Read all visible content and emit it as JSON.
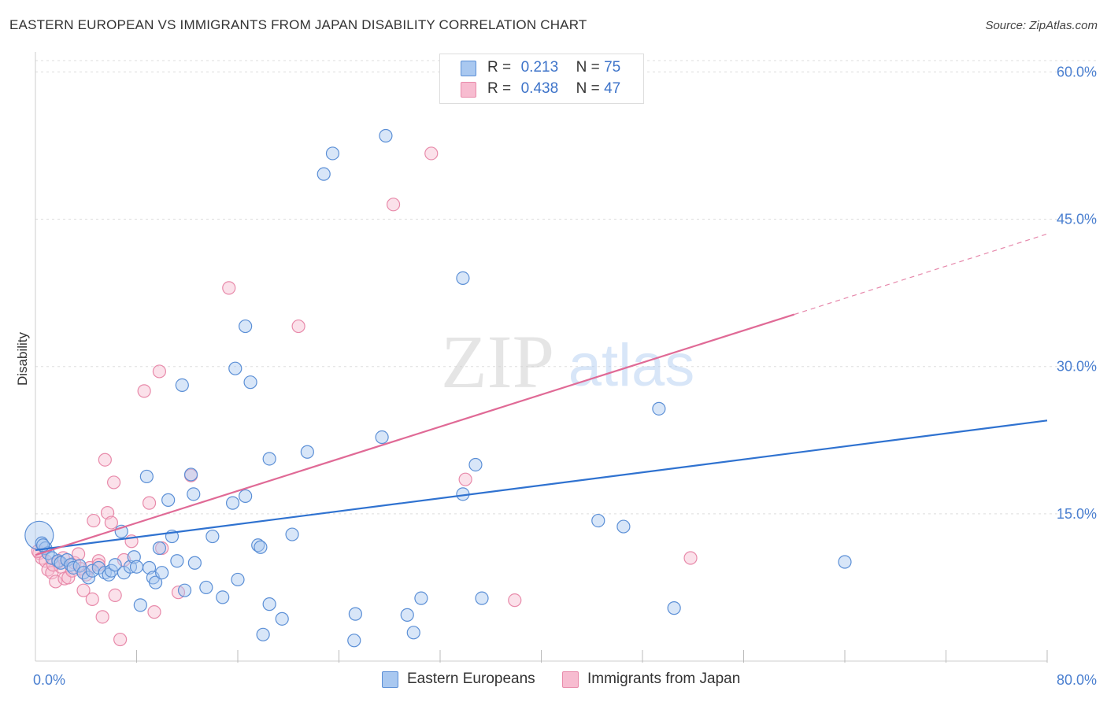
{
  "title": "EASTERN EUROPEAN VS IMMIGRANTS FROM JAPAN DISABILITY CORRELATION CHART",
  "source": "Source: ZipAtlas.com",
  "watermark": {
    "zip": "ZIP",
    "atlas": "atlas"
  },
  "legend": {
    "rows": [
      {
        "r_label": "R =",
        "r_value": "0.213",
        "n_label": "N =",
        "n_value": "75",
        "color": "#a9c8f0"
      },
      {
        "r_label": "R =",
        "r_value": "0.438",
        "n_label": "N =",
        "n_value": "47",
        "color": "#f7bcd0"
      }
    ]
  },
  "bottom_legend": [
    {
      "label": "Eastern Europeans",
      "color": "#a9c8f0"
    },
    {
      "label": "Immigrants from Japan",
      "color": "#f7bcd0"
    }
  ],
  "colors": {
    "blue_fill": "#a9c8f0",
    "blue_stroke": "#5b8fd6",
    "blue_line": "#2f72d0",
    "pink_fill": "#f7bcd0",
    "pink_stroke": "#e88aaa",
    "pink_line": "#e06a96",
    "grid": "#dddddd",
    "tick_text": "#4a7fd0"
  },
  "chart_data": {
    "type": "scatter",
    "title": "EASTERN EUROPEAN VS IMMIGRANTS FROM JAPAN DISABILITY CORRELATION CHART",
    "xlabel": "",
    "ylabel": "Disability",
    "xlim": [
      0,
      80
    ],
    "ylim": [
      0,
      60
    ],
    "x_tick_labels": [
      {
        "x": 0,
        "label": "0.0%"
      },
      {
        "x": 80,
        "label": "80.0%"
      }
    ],
    "y_tick_labels": [
      {
        "y": 15,
        "label": "15.0%"
      },
      {
        "y": 30,
        "label": "30.0%"
      },
      {
        "y": 45,
        "label": "45.0%"
      },
      {
        "y": 60,
        "label": "60.0%"
      }
    ],
    "x_minor_ticks": [
      8,
      16,
      24,
      32,
      40,
      48,
      56,
      64,
      72,
      80
    ],
    "series": [
      {
        "name": "Eastern Europeans",
        "color": "#a9c8f0",
        "points": [
          [
            0.3,
            12.8
          ],
          [
            0.5,
            12.0
          ],
          [
            0.8,
            11.5
          ],
          [
            1.0,
            11.0
          ],
          [
            1.3,
            10.5
          ],
          [
            1.8,
            10.2
          ],
          [
            2.0,
            10.0
          ],
          [
            2.5,
            10.3
          ],
          [
            2.8,
            9.8
          ],
          [
            3.0,
            9.5
          ],
          [
            3.5,
            9.7
          ],
          [
            3.8,
            9.0
          ],
          [
            4.2,
            8.5
          ],
          [
            4.5,
            9.2
          ],
          [
            5.0,
            9.5
          ],
          [
            5.5,
            9.0
          ],
          [
            5.8,
            8.8
          ],
          [
            6.0,
            9.2
          ],
          [
            6.3,
            9.8
          ],
          [
            6.8,
            13.2
          ],
          [
            7.0,
            9.0
          ],
          [
            7.5,
            9.6
          ],
          [
            7.8,
            10.6
          ],
          [
            8.0,
            9.6
          ],
          [
            8.3,
            5.7
          ],
          [
            8.8,
            18.8
          ],
          [
            9.0,
            9.5
          ],
          [
            9.3,
            8.5
          ],
          [
            9.5,
            8.0
          ],
          [
            9.8,
            11.5
          ],
          [
            10.0,
            9.0
          ],
          [
            10.5,
            16.4
          ],
          [
            10.8,
            12.7
          ],
          [
            11.2,
            10.2
          ],
          [
            11.6,
            28.1
          ],
          [
            11.8,
            7.2
          ],
          [
            12.3,
            19.0
          ],
          [
            12.5,
            17.0
          ],
          [
            12.6,
            10.0
          ],
          [
            13.5,
            7.5
          ],
          [
            14.0,
            12.7
          ],
          [
            14.8,
            6.5
          ],
          [
            15.6,
            16.1
          ],
          [
            15.8,
            29.8
          ],
          [
            16.0,
            8.3
          ],
          [
            16.6,
            34.1
          ],
          [
            16.6,
            16.8
          ],
          [
            17.0,
            28.4
          ],
          [
            17.6,
            11.8
          ],
          [
            17.8,
            11.6
          ],
          [
            18.0,
            2.7
          ],
          [
            18.5,
            20.6
          ],
          [
            18.5,
            5.8
          ],
          [
            19.5,
            4.3
          ],
          [
            20.3,
            12.9
          ],
          [
            21.5,
            21.3
          ],
          [
            22.8,
            49.6
          ],
          [
            23.5,
            51.7
          ],
          [
            25.3,
            4.8
          ],
          [
            25.2,
            2.1
          ],
          [
            27.4,
            22.8
          ],
          [
            27.7,
            53.5
          ],
          [
            29.4,
            4.7
          ],
          [
            29.9,
            2.9
          ],
          [
            30.5,
            6.4
          ],
          [
            33.8,
            39.0
          ],
          [
            33.8,
            17.0
          ],
          [
            34.8,
            20.0
          ],
          [
            35.3,
            6.4
          ],
          [
            44.5,
            14.3
          ],
          [
            46.5,
            13.7
          ],
          [
            49.3,
            25.7
          ],
          [
            50.5,
            5.4
          ],
          [
            64.0,
            10.1
          ],
          [
            0.6,
            11.8
          ]
        ],
        "trend": {
          "x": [
            0,
            80
          ],
          "y": [
            11.3,
            24.5
          ]
        }
      },
      {
        "name": "Immigrants from Japan",
        "color": "#f7bcd0",
        "points": [
          [
            0.3,
            11.0
          ],
          [
            0.5,
            10.5
          ],
          [
            0.8,
            10.2
          ],
          [
            1.0,
            9.3
          ],
          [
            1.3,
            9.0
          ],
          [
            1.6,
            8.1
          ],
          [
            1.8,
            10.1
          ],
          [
            2.0,
            9.6
          ],
          [
            2.2,
            10.5
          ],
          [
            2.3,
            8.4
          ],
          [
            2.6,
            8.5
          ],
          [
            2.9,
            9.2
          ],
          [
            3.1,
            10.0
          ],
          [
            3.4,
            10.9
          ],
          [
            3.6,
            9.4
          ],
          [
            3.8,
            7.2
          ],
          [
            4.0,
            8.8
          ],
          [
            4.3,
            9.5
          ],
          [
            4.5,
            6.3
          ],
          [
            4.6,
            14.3
          ],
          [
            5.0,
            10.2
          ],
          [
            5.0,
            9.8
          ],
          [
            5.3,
            4.5
          ],
          [
            5.5,
            20.5
          ],
          [
            5.7,
            15.1
          ],
          [
            6.0,
            14.1
          ],
          [
            6.2,
            18.2
          ],
          [
            6.3,
            6.7
          ],
          [
            6.7,
            2.2
          ],
          [
            7.0,
            10.3
          ],
          [
            7.6,
            12.2
          ],
          [
            8.6,
            27.5
          ],
          [
            9.0,
            16.1
          ],
          [
            9.4,
            5.0
          ],
          [
            9.8,
            29.5
          ],
          [
            10.0,
            11.5
          ],
          [
            11.3,
            7.0
          ],
          [
            12.3,
            18.9
          ],
          [
            15.3,
            38.0
          ],
          [
            20.8,
            34.1
          ],
          [
            28.3,
            46.5
          ],
          [
            31.3,
            51.7
          ],
          [
            34.0,
            18.5
          ],
          [
            37.9,
            6.2
          ],
          [
            51.8,
            10.5
          ],
          [
            0.2,
            11.2
          ],
          [
            1.4,
            9.8
          ]
        ],
        "trend": {
          "x": [
            0,
            60
          ],
          "y": [
            10.8,
            35.3
          ]
        },
        "trend_extension": {
          "x": [
            60,
            80
          ],
          "y": [
            35.3,
            43.5
          ]
        }
      }
    ]
  }
}
